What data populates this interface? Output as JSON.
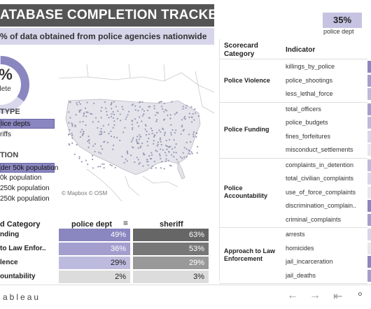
{
  "header": {
    "title": "ATABASE COMPLETION TRACKER",
    "subtitle": "% of data obtained from police agencies nationwide"
  },
  "donut": {
    "percent_text": "5%",
    "percent_value": 0.35,
    "label": "plete",
    "fill_color": "#8a86c0",
    "track_color": "#d9d7ec"
  },
  "agency_type": {
    "heading": "TYPE",
    "items": [
      {
        "label": "lice depts",
        "selected": true
      },
      {
        "label": "riffs",
        "selected": false
      }
    ]
  },
  "population": {
    "heading": "TION",
    "items": [
      {
        "label": "der 50k population",
        "selected": true
      },
      {
        "label": "0k population",
        "selected": false
      },
      {
        "label": "250k population",
        "selected": false
      },
      {
        "label": "250k population",
        "selected": false
      }
    ]
  },
  "map": {
    "credit": "© Mapbox © OSM"
  },
  "bottom_table": {
    "col_category": "d Category",
    "col_police": "police dept",
    "col_sheriff": "sheriff",
    "rows": [
      {
        "label": "nding",
        "police": "49%",
        "police_value": 49,
        "sheriff": "63%",
        "sheriff_value": 63
      },
      {
        "label": "to Law Enfor..",
        "police": "36%",
        "police_value": 36,
        "sheriff": "53%",
        "sheriff_value": 53
      },
      {
        "label": "lence",
        "police": "29%",
        "police_value": 29,
        "sheriff": "29%",
        "sheriff_value": 29
      },
      {
        "label": "ountability",
        "police": "2%",
        "police_value": 2,
        "sheriff": "3%",
        "sheriff_value": 3
      }
    ]
  },
  "right_panel": {
    "top_percent": "35%",
    "top_label": "police dept",
    "header_category": "Scorecard Category",
    "header_indicator": "Indicator",
    "groups": [
      {
        "category": "Police Violence",
        "indicators": [
          "killings_by_police",
          "police_shootings",
          "less_lethal_force"
        ]
      },
      {
        "category": "Police Funding",
        "indicators": [
          "total_officers",
          "police_budgets",
          "fines_forfeitures",
          "misconduct_settlements"
        ]
      },
      {
        "category": "Police Accountability",
        "indicators": [
          "complaints_in_detention",
          "total_civilian_complaints",
          "use_of_force_complaints",
          "discrimination_complain..",
          "criminal_complaints"
        ]
      },
      {
        "category": "Approach to Law Enforcement",
        "indicators": [
          "arrests",
          "homicides",
          "jail_incarceration",
          "jail_deaths"
        ]
      }
    ]
  },
  "footer": {
    "brand": "ableau"
  }
}
